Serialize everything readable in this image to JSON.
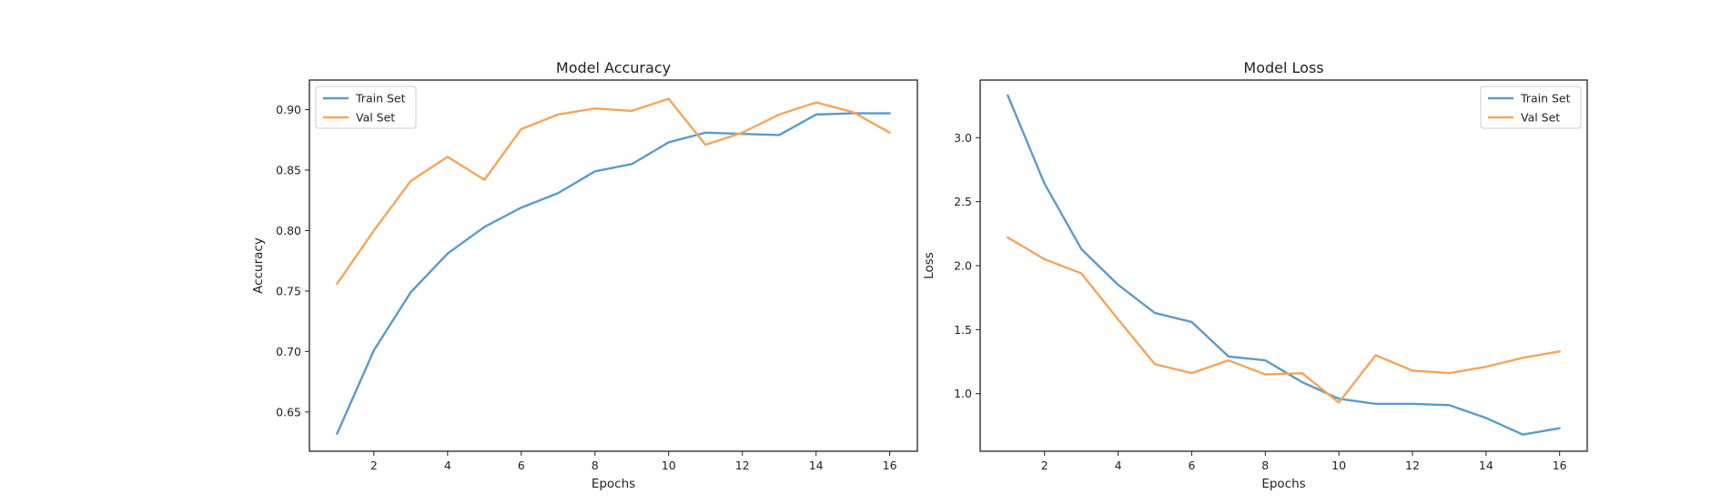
{
  "chart_data": [
    {
      "type": "line",
      "title": "Model Accuracy",
      "xlabel": "Epochs",
      "ylabel": "Accuracy",
      "xlim": [
        0.25,
        16.75
      ],
      "ylim": [
        0.6175,
        0.9245
      ],
      "xticks": [
        2,
        4,
        6,
        8,
        10,
        12,
        14,
        16
      ],
      "xtick_labels": [
        "2",
        "4",
        "6",
        "8",
        "10",
        "12",
        "14",
        "16"
      ],
      "yticks": [
        0.65,
        0.7,
        0.75,
        0.8,
        0.85,
        0.9
      ],
      "ytick_labels": [
        "0.65",
        "0.70",
        "0.75",
        "0.80",
        "0.85",
        "0.90"
      ],
      "legend_position": "upper left",
      "grid": false,
      "x": [
        1,
        2,
        3,
        4,
        5,
        6,
        7,
        8,
        9,
        10,
        11,
        12,
        13,
        14,
        15,
        16
      ],
      "series": [
        {
          "name": "Train Set",
          "color": "#5b9bc9",
          "values": [
            0.632,
            0.701,
            0.749,
            0.781,
            0.803,
            0.819,
            0.831,
            0.849,
            0.855,
            0.873,
            0.881,
            0.88,
            0.879,
            0.896,
            0.897,
            0.897
          ]
        },
        {
          "name": "Val Set",
          "color": "#f5a55a",
          "values": [
            0.756,
            0.8,
            0.841,
            0.861,
            0.842,
            0.884,
            0.896,
            0.901,
            0.899,
            0.909,
            0.871,
            0.881,
            0.896,
            0.906,
            0.898,
            0.881
          ]
        }
      ]
    },
    {
      "type": "line",
      "title": "Model Loss",
      "xlabel": "Epochs",
      "ylabel": "Loss",
      "xlim": [
        0.25,
        16.75
      ],
      "ylim": [
        0.55,
        3.45
      ],
      "xticks": [
        2,
        4,
        6,
        8,
        10,
        12,
        14,
        16
      ],
      "xtick_labels": [
        "2",
        "4",
        "6",
        "8",
        "10",
        "12",
        "14",
        "16"
      ],
      "yticks": [
        1.0,
        1.5,
        2.0,
        2.5,
        3.0
      ],
      "ytick_labels": [
        "1.0",
        "1.5",
        "2.0",
        "2.5",
        "3.0"
      ],
      "legend_position": "upper right",
      "grid": false,
      "x": [
        1,
        2,
        3,
        4,
        5,
        6,
        7,
        8,
        9,
        10,
        11,
        12,
        13,
        14,
        15,
        16
      ],
      "series": [
        {
          "name": "Train Set",
          "color": "#5b9bc9",
          "values": [
            3.33,
            2.64,
            2.13,
            1.85,
            1.63,
            1.56,
            1.29,
            1.26,
            1.09,
            0.96,
            0.92,
            0.92,
            0.91,
            0.81,
            0.68,
            0.73
          ]
        },
        {
          "name": "Val Set",
          "color": "#f5a55a",
          "values": [
            2.22,
            2.05,
            1.94,
            1.58,
            1.23,
            1.16,
            1.26,
            1.15,
            1.16,
            0.93,
            1.3,
            1.18,
            1.16,
            1.21,
            1.28,
            1.33
          ]
        }
      ]
    }
  ]
}
